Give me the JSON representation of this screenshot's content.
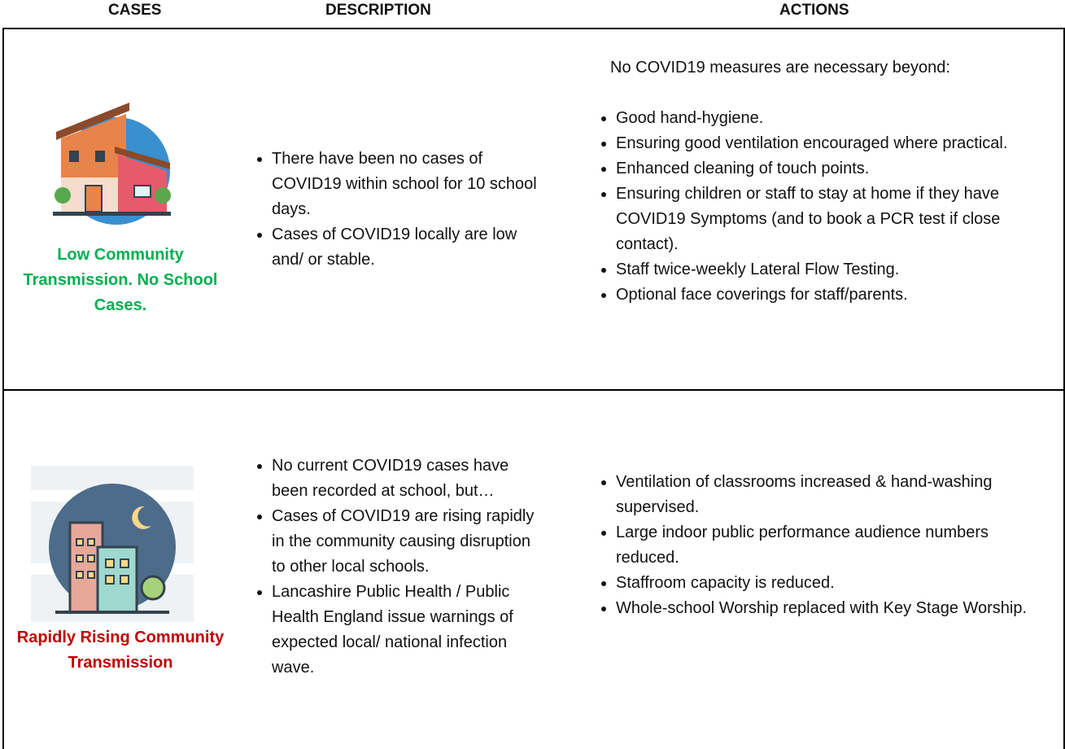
{
  "header": {
    "columns": [
      "CASES",
      "DESCRIPTION",
      "ACTIONS"
    ]
  },
  "table": {
    "rows": [
      {
        "case": "Low Community Transmission. No School Cases.",
        "description": [
          "There have been no cases of COVID19 within school for 10 school days.",
          "Cases of COVID19 locally are low and/ or stable."
        ],
        "actions_intro": "No COVID19 measures are necessary beyond:",
        "actions": [
          "Good hand-hygiene.",
          "Ensuring good ventilation encouraged where practical.",
          "Enhanced cleaning of touch points.",
          "Ensuring children or staff to stay at home if they have COVID19 Symptoms (and to book a PCR test if close contact).",
          "Staff twice-weekly Lateral Flow Testing.",
          "Optional face coverings for staff/parents."
        ]
      },
      {
        "case": "Rapidly Rising Community Transmission",
        "description": [
          "No current COVID19 cases have been recorded at school, but…",
          "Cases of COVID19 are rising rapidly in the community causing disruption to other local schools.",
          "Lancashire Public Health / Public Health England issue warnings of expected local/ national infection wave."
        ],
        "actions": [
          "Ventilation of classrooms increased & hand-washing supervised.",
          "Large indoor public performance audience numbers reduced.",
          "Staffroom capacity is reduced.",
          "Whole-school Worship replaced with Key Stage Worship."
        ]
      }
    ]
  }
}
